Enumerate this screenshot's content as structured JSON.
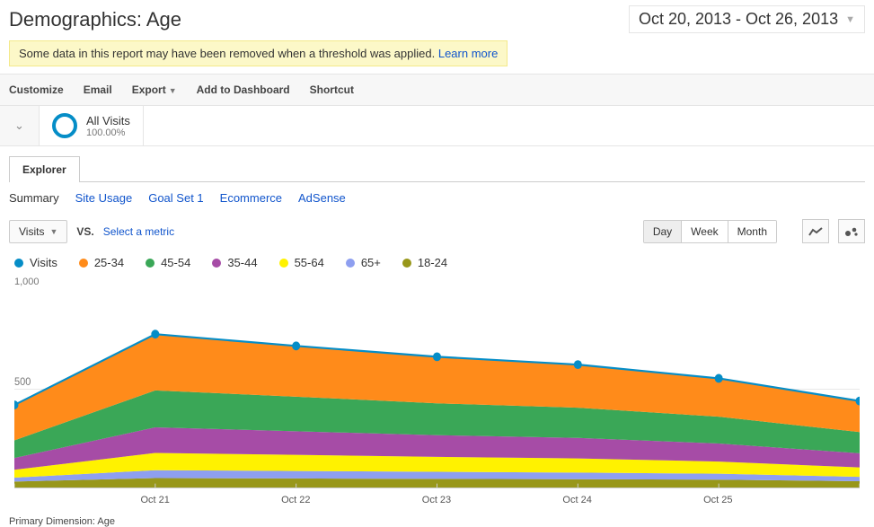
{
  "title": "Demographics: Age",
  "date_range": "Oct 20, 2013 - Oct 26, 2013",
  "notice": {
    "text": "Some data in this report may have been removed when a threshold was applied.",
    "link": "Learn more"
  },
  "toolbar": [
    "Customize",
    "Email",
    "Export",
    "Add to Dashboard",
    "Shortcut"
  ],
  "toolbar_dropdown_index": 2,
  "segment": {
    "name": "All Visits",
    "pct": "100.00%",
    "circle_color": "#058dc7"
  },
  "tabs": [
    "Explorer"
  ],
  "active_tab": 0,
  "sublinks": [
    "Summary",
    "Site Usage",
    "Goal Set 1",
    "Ecommerce",
    "AdSense"
  ],
  "active_sublink": 0,
  "metric_selector": {
    "primary": "Visits",
    "vs": "VS.",
    "secondary": "Select a metric"
  },
  "granularity": {
    "options": [
      "Day",
      "Week",
      "Month"
    ],
    "active": 0
  },
  "chart": {
    "type": "stacked-area-with-line",
    "ylim": [
      0,
      1000
    ],
    "ylabel": "1,000",
    "mid_gridline": 500,
    "x_labels": [
      "Oct 21",
      "Oct 22",
      "Oct 23",
      "Oct 24",
      "Oct 25"
    ],
    "categories": [
      "Oct 20",
      "Oct 21",
      "Oct 22",
      "Oct 23",
      "Oct 24",
      "Oct 25",
      "Oct 26"
    ],
    "line_series": {
      "name": "Visits",
      "color": "#058dc7",
      "marker": "circle",
      "values": [
        420,
        780,
        720,
        665,
        625,
        555,
        440
      ]
    },
    "stacks": [
      {
        "name": "18-24",
        "color": "#98971a",
        "values": [
          30,
          48,
          46,
          44,
          42,
          40,
          32
        ]
      },
      {
        "name": "65+",
        "color": "#8e9ff0",
        "values": [
          20,
          40,
          38,
          36,
          34,
          30,
          22
        ]
      },
      {
        "name": "55-64",
        "color": "#fff200",
        "values": [
          40,
          88,
          82,
          76,
          72,
          62,
          48
        ]
      },
      {
        "name": "35-44",
        "color": "#a64ca6",
        "values": [
          60,
          130,
          120,
          110,
          104,
          92,
          72
        ]
      },
      {
        "name": "45-54",
        "color": "#3aa757",
        "values": [
          90,
          188,
          176,
          162,
          154,
          136,
          108
        ]
      },
      {
        "name": "25-34",
        "color": "#ff8b1a",
        "values": [
          180,
          286,
          258,
          237,
          219,
          195,
          158
        ]
      }
    ],
    "legend_order": [
      "Visits",
      "25-34",
      "45-54",
      "35-44",
      "55-64",
      "65+",
      "18-24"
    ],
    "background_color": "#ffffff"
  },
  "footer": "Primary Dimension:  Age"
}
